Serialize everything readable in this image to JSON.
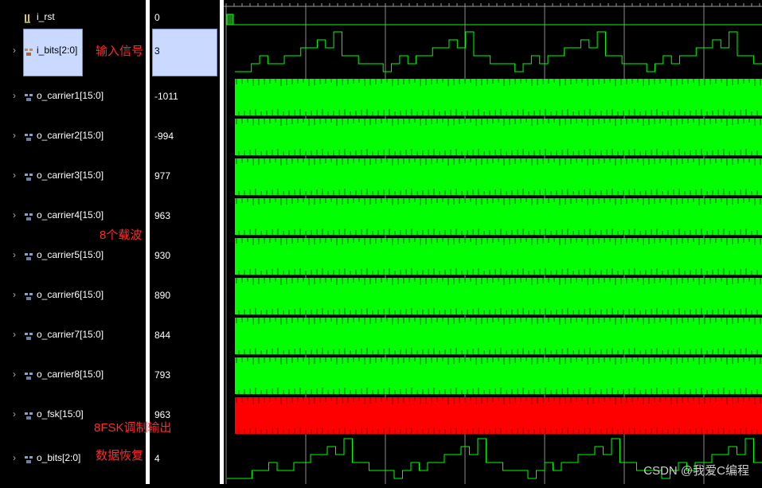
{
  "signals": [
    {
      "name": "i_rst",
      "value": "0",
      "expandable": false,
      "icon": "bit-icon",
      "color": "#00ff00"
    },
    {
      "name": "i_bits[2:0]",
      "value": "3",
      "expandable": true,
      "icon": "bus-icon",
      "color": "#00ff00",
      "selected": true
    },
    {
      "name": "o_carrier1[15:0]",
      "value": "-1011",
      "expandable": true,
      "icon": "bus-icon",
      "color": "#00ff00"
    },
    {
      "name": "o_carrier2[15:0]",
      "value": "-994",
      "expandable": true,
      "icon": "bus-icon",
      "color": "#00ff00"
    },
    {
      "name": "o_carrier3[15:0]",
      "value": "977",
      "expandable": true,
      "icon": "bus-icon",
      "color": "#00ff00"
    },
    {
      "name": "o_carrier4[15:0]",
      "value": "963",
      "expandable": true,
      "icon": "bus-icon",
      "color": "#00ff00"
    },
    {
      "name": "o_carrier5[15:0]",
      "value": "930",
      "expandable": true,
      "icon": "bus-icon",
      "color": "#00ff00"
    },
    {
      "name": "o_carrier6[15:0]",
      "value": "890",
      "expandable": true,
      "icon": "bus-icon",
      "color": "#00ff00"
    },
    {
      "name": "o_carrier7[15:0]",
      "value": "844",
      "expandable": true,
      "icon": "bus-icon",
      "color": "#00ff00"
    },
    {
      "name": "o_carrier8[15:0]",
      "value": "793",
      "expandable": true,
      "icon": "bus-icon",
      "color": "#00ff00"
    },
    {
      "name": "o_fsk[15:0]",
      "value": "963",
      "expandable": true,
      "icon": "bus-icon",
      "color": "#ff0000"
    },
    {
      "name": "o_bits[2:0]",
      "value": "4",
      "expandable": true,
      "icon": "bus-icon",
      "color": "#00ff00"
    }
  ],
  "annotations": {
    "input": "输入信号",
    "carriers": "8个载波",
    "fsk": "8FSK调制输出",
    "recovery": "数据恢复"
  },
  "watermark": "CSDN @我爱C编程",
  "colors": {
    "trace": "#00ff00",
    "fsk": "#ff0000",
    "annotation": "#ff2a2a",
    "background": "#000000",
    "selection": "#cad9ff"
  },
  "i_bits_sequence": [
    0,
    0,
    1,
    2,
    1,
    1,
    2,
    2,
    3,
    3,
    4,
    3,
    5,
    2,
    2,
    1,
    1,
    1,
    0,
    1,
    2,
    1,
    2,
    2,
    3,
    3,
    4,
    3,
    5,
    2,
    2,
    1,
    1,
    1,
    0,
    1,
    2,
    1,
    2,
    2,
    3,
    3,
    4,
    3,
    5,
    2,
    2,
    1,
    1,
    1,
    0,
    1,
    2,
    1,
    2,
    2,
    3,
    3,
    4,
    3,
    5,
    2,
    2,
    1
  ],
  "o_bits_sequence": [
    0,
    0,
    0,
    1,
    1,
    2,
    1,
    1,
    2,
    2,
    3,
    3,
    4,
    3,
    5,
    2,
    2,
    1,
    1,
    1,
    0,
    1,
    2,
    1,
    2,
    2,
    3,
    3,
    4,
    3,
    5,
    2,
    2,
    1,
    1,
    1,
    0,
    1,
    2,
    1,
    2,
    2,
    3,
    3,
    4,
    3,
    5,
    2,
    2,
    1,
    1,
    1,
    0,
    1,
    2,
    1,
    2,
    2,
    3,
    3,
    4,
    3,
    5,
    2
  ]
}
